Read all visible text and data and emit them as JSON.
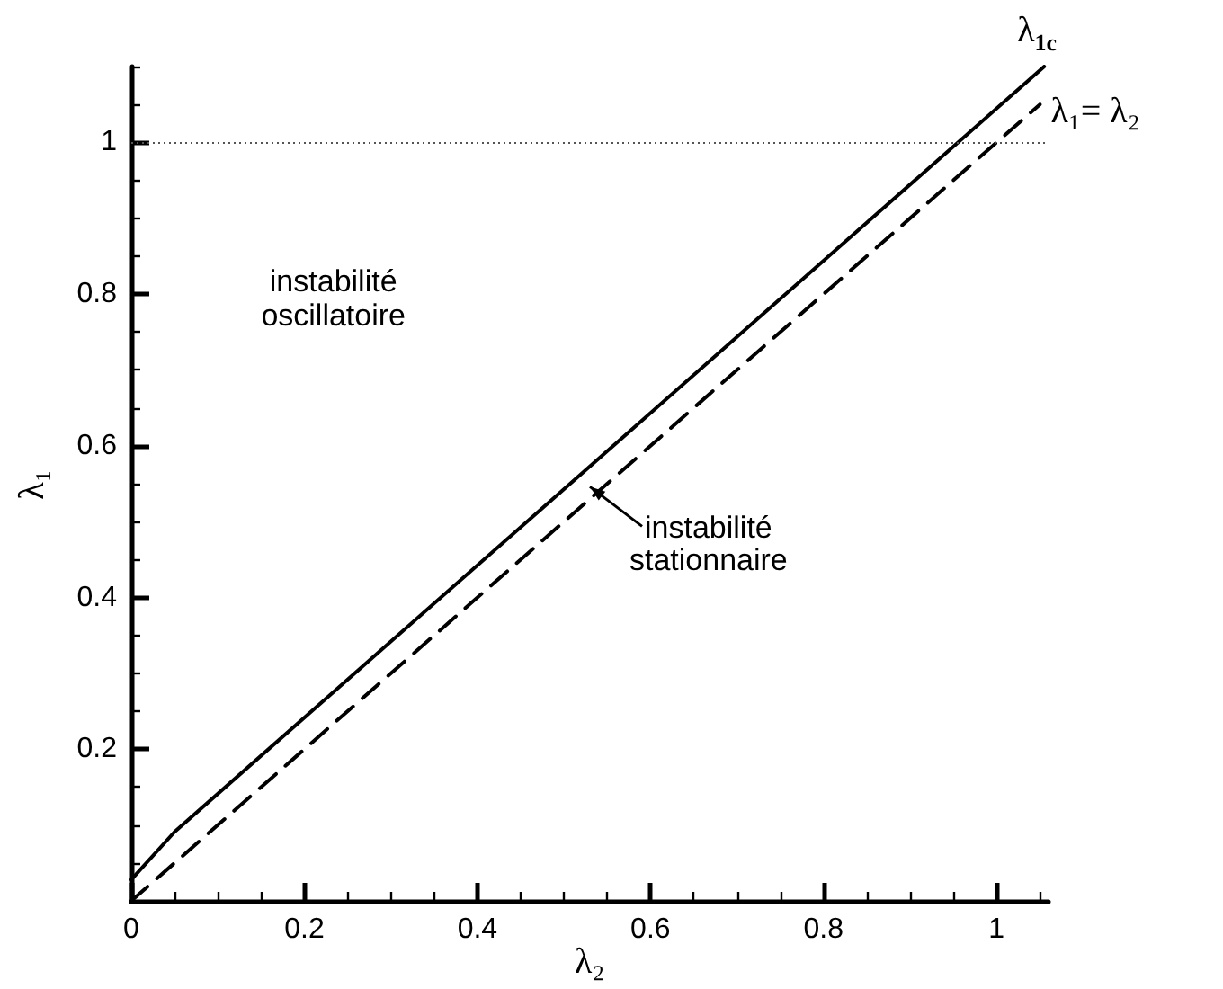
{
  "chart_data": {
    "type": "line",
    "xlabel": "λ₂",
    "ylabel": "λ₁",
    "xlim": [
      0,
      1.06
    ],
    "ylim": [
      0,
      1.1
    ],
    "xticks": [
      0,
      {
        "value": 0.05,
        "label": null
      },
      {
        "value": 0.1,
        "label": null
      },
      {
        "value": 0.15,
        "label": null
      },
      0.2,
      {
        "value": 0.25,
        "label": null
      },
      {
        "value": 0.3,
        "label": null
      },
      {
        "value": 0.35,
        "label": null
      },
      0.4,
      {
        "value": 0.45,
        "label": null
      },
      {
        "value": 0.5,
        "label": null
      },
      {
        "value": 0.55,
        "label": null
      },
      0.6,
      {
        "value": 0.65,
        "label": null
      },
      {
        "value": 0.7,
        "label": null
      },
      {
        "value": 0.75,
        "label": null
      },
      0.8,
      {
        "value": 0.85,
        "label": null
      },
      {
        "value": 0.9,
        "label": null
      },
      {
        "value": 0.95,
        "label": null
      },
      1,
      {
        "value": 1.05,
        "label": null
      }
    ],
    "yticks": [
      {
        "value": 0,
        "label": null
      },
      {
        "value": 0.05,
        "label": null
      },
      {
        "value": 0.1,
        "label": null
      },
      {
        "value": 0.15,
        "label": null
      },
      0.2,
      {
        "value": 0.25,
        "label": null
      },
      {
        "value": 0.3,
        "label": null
      },
      {
        "value": 0.35,
        "label": null
      },
      0.4,
      {
        "value": 0.45,
        "label": null
      },
      {
        "value": 0.5,
        "label": null
      },
      {
        "value": 0.55,
        "label": null
      },
      0.6,
      {
        "value": 0.65,
        "label": null
      },
      {
        "value": 0.7,
        "label": null
      },
      {
        "value": 0.75,
        "label": null
      },
      0.8,
      {
        "value": 0.85,
        "label": null
      },
      {
        "value": 0.9,
        "label": null
      },
      {
        "value": 0.95,
        "label": null
      },
      1,
      {
        "value": 1.05,
        "label": null
      },
      {
        "value": 1.1,
        "label": null
      }
    ],
    "series": [
      {
        "name": "λ$_{1c}$",
        "color": "#000000",
        "line_style": "solid",
        "x": [
          0,
          0.05,
          1.055
        ],
        "values": [
          0.028,
          0.091,
          1.1
        ]
      },
      {
        "name": "λ₁= λ₂",
        "color": "#000000",
        "line_style": "dashed",
        "x": [
          0,
          1.05
        ],
        "values": [
          0,
          1.05
        ]
      }
    ],
    "ref_lines": [
      {
        "axis": "y",
        "value": 1,
        "label": null,
        "color": "#555555",
        "line_style": "dotted"
      }
    ],
    "annotations": [
      "instabilité oscillatoire",
      {
        "text": "instabilité stationnaire",
        "x": 0.53,
        "y": 0.546
      }
    ],
    "marker": "none",
    "grid": false,
    "legend": false
  }
}
